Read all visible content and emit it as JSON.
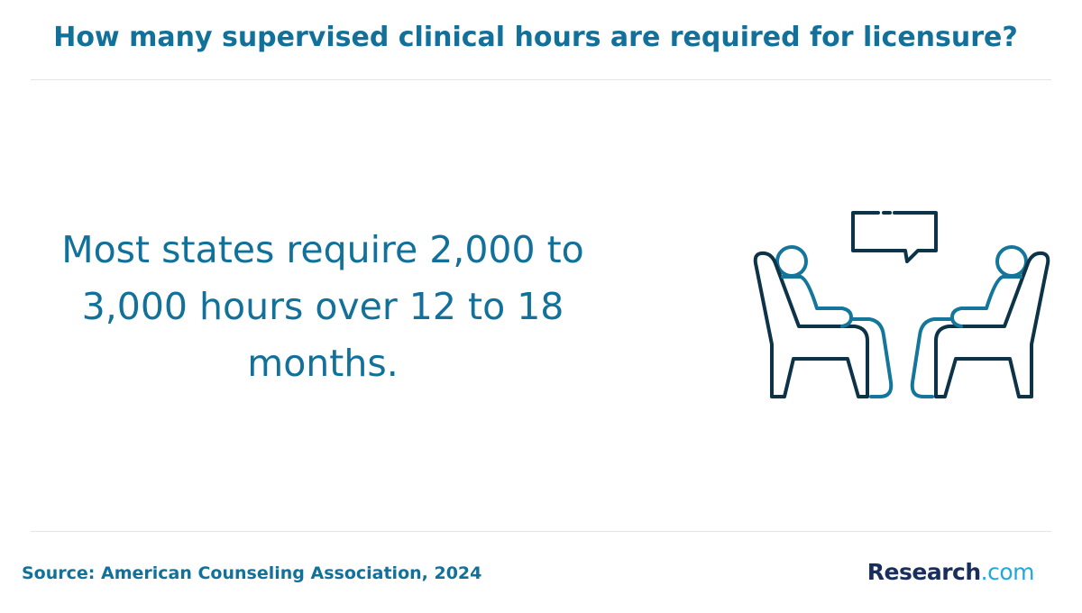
{
  "header": {
    "title": "How many supervised clinical hours are required for licensure?"
  },
  "body": {
    "statement": "Most states require 2,000 to 3,000 hours over 12 to 18 months."
  },
  "footer": {
    "source": "Source: American Counseling Association, 2024",
    "logo": {
      "name": "Research",
      "suffix": ".com"
    }
  }
}
